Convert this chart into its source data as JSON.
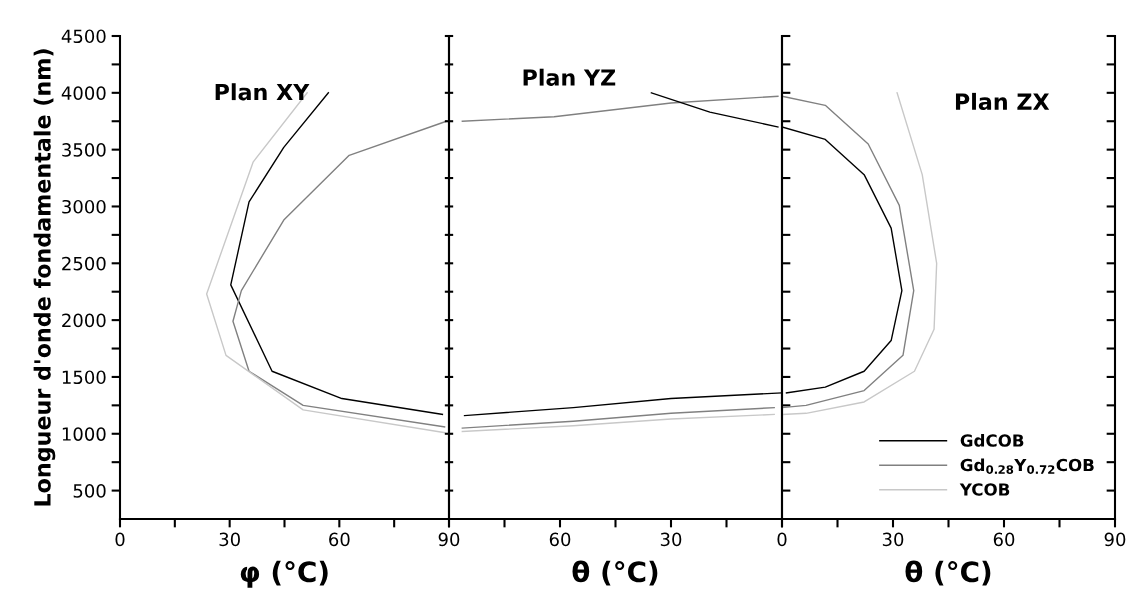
{
  "chart_data": [
    {
      "type": "line",
      "annotations": [
        "Plan XY"
      ],
      "xlabel": "φ (°C)",
      "ylabel": "Longueur d'onde fondamentale (nm)",
      "xlim": [
        0,
        90
      ],
      "xticks": [
        0,
        {
          "value": 15,
          "label": null
        },
        30,
        {
          "value": 45,
          "label": null
        },
        60,
        {
          "value": 75,
          "label": null
        },
        {
          "value": 90,
          "label": null
        }
      ],
      "ylim": [
        250,
        4500
      ],
      "yticks": [
        500,
        {
          "value": 750,
          "label": null
        },
        1000,
        {
          "value": 1250,
          "label": null
        },
        1500,
        {
          "value": 1750,
          "label": null
        },
        2000,
        {
          "value": 2250,
          "label": null
        },
        2500,
        {
          "value": 2750,
          "label": null
        },
        3000,
        {
          "value": 3250,
          "label": null
        },
        3500,
        {
          "value": 3750,
          "label": null
        },
        4000,
        {
          "value": 4250,
          "label": null
        },
        4500
      ],
      "grid": false,
      "legend": false,
      "series": [
        {
          "color": "#000000",
          "x": [
            57,
            44.8,
            35.3,
            30.3,
            41.6,
            60.7,
            88.2
          ],
          "values": [
            4000,
            3520,
            3040,
            2310,
            1550,
            1310,
            1170
          ]
        },
        {
          "color": "#808080",
          "x": [
            89.3,
            62.7,
            44.8,
            33.2,
            30.9,
            35.3,
            50.1,
            88.8
          ],
          "values": [
            3750,
            3450,
            2880,
            2260,
            1990,
            1550,
            1250,
            1060
          ]
        },
        {
          "color": "#c8c8c8",
          "x": [
            51.2,
            36.4,
            23.7,
            29,
            50.1,
            88.8
          ],
          "values": [
            4000,
            3390,
            2230,
            1690,
            1210,
            1010
          ]
        }
      ]
    },
    {
      "type": "line",
      "annotations": [
        "Plan YZ"
      ],
      "xlabel": "θ (°C)",
      "tick_labels": "x",
      "xlim": [
        90,
        0
      ],
      "xticks": [
        90,
        {
          "value": 75,
          "label": null
        },
        60,
        {
          "value": 45,
          "label": null
        },
        30,
        {
          "value": 15,
          "label": null
        },
        {
          "value": 0,
          "label": null
        }
      ],
      "ylim": [
        250,
        4500
      ],
      "yticks": [
        {
          "value": 500,
          "label": null
        },
        {
          "value": 750,
          "label": null
        },
        {
          "value": 1000,
          "label": null
        },
        {
          "value": 1250,
          "label": null
        },
        {
          "value": 1500,
          "label": null
        },
        {
          "value": 1750,
          "label": null
        },
        {
          "value": 2000,
          "label": null
        },
        {
          "value": 2250,
          "label": null
        },
        {
          "value": 2500,
          "label": null
        },
        {
          "value": 2750,
          "label": null
        },
        {
          "value": 3000,
          "label": null
        },
        {
          "value": 3250,
          "label": null
        },
        {
          "value": 3500,
          "label": null
        },
        {
          "value": 3750,
          "label": null
        },
        {
          "value": 4000,
          "label": null
        },
        {
          "value": 4250,
          "label": null
        },
        {
          "value": 4500,
          "label": null
        }
      ],
      "grid": false,
      "legend": false,
      "series": [
        {
          "color": "#808080",
          "x": [
            86.4,
            61.6,
            30,
            1.1
          ],
          "values": [
            3750,
            3790,
            3910,
            3970
          ]
        },
        {
          "color": "#000000",
          "x": [
            35.3,
            19.5,
            1.1
          ],
          "values": [
            4000,
            3830,
            3700
          ]
        },
        {
          "color": "#000000",
          "x": [
            85.8,
            56.4,
            30,
            0
          ],
          "values": [
            1160,
            1230,
            1310,
            1360
          ]
        },
        {
          "color": "#808080",
          "x": [
            86.4,
            56.4,
            30,
            2.1
          ],
          "values": [
            1050,
            1110,
            1180,
            1230
          ]
        },
        {
          "color": "#c8c8c8",
          "x": [
            86.4,
            56.4,
            30,
            2.1
          ],
          "values": [
            1020,
            1070,
            1130,
            1170
          ]
        }
      ]
    },
    {
      "type": "line",
      "annotations": [
        "Plan ZX"
      ],
      "xlabel": "θ (°C)",
      "tick_labels": "x",
      "xlim": [
        0,
        90
      ],
      "xticks": [
        0,
        {
          "value": 15,
          "label": null
        },
        30,
        {
          "value": 45,
          "label": null
        },
        60,
        {
          "value": 75,
          "label": null
        },
        90
      ],
      "ylim": [
        250,
        4500
      ],
      "yticks": [
        {
          "value": 500,
          "label": null
        },
        {
          "value": 750,
          "label": null
        },
        {
          "value": 1000,
          "label": null
        },
        {
          "value": 1250,
          "label": null
        },
        {
          "value": 1500,
          "label": null
        },
        {
          "value": 1750,
          "label": null
        },
        {
          "value": 2000,
          "label": null
        },
        {
          "value": 2250,
          "label": null
        },
        {
          "value": 2500,
          "label": null
        },
        {
          "value": 2750,
          "label": null
        },
        {
          "value": 3000,
          "label": null
        },
        {
          "value": 3250,
          "label": null
        },
        {
          "value": 3500,
          "label": null
        },
        {
          "value": 3750,
          "label": null
        },
        {
          "value": 4000,
          "label": null
        },
        {
          "value": 4250,
          "label": null
        },
        {
          "value": 4500,
          "label": null
        }
      ],
      "grid": false,
      "legend": "bottom right",
      "series": [
        {
          "name": "GdCOB",
          "color": "#000000",
          "x": [
            0,
            11.7,
            22.2,
            29.5,
            32.4,
            29.5,
            22.2,
            11.7,
            1.2
          ],
          "values": [
            3700,
            3590,
            3280,
            2810,
            2260,
            1820,
            1550,
            1410,
            1360
          ]
        },
        {
          "name": "Gd$_{0.28}$Y$_{0.72}$COB",
          "color": "#808080",
          "x": [
            0,
            11.7,
            23.3,
            31.7,
            35.6,
            32.7,
            22.2,
            6.5,
            0
          ],
          "values": [
            3970,
            3890,
            3550,
            3010,
            2260,
            1690,
            1380,
            1250,
            1230
          ]
        },
        {
          "name": "YCOB",
          "color": "#c8c8c8",
          "x": [
            31.1,
            37.9,
            41.8,
            41.1,
            35.8,
            22.2,
            6.5,
            0
          ],
          "values": [
            4000,
            3280,
            2500,
            1920,
            1550,
            1280,
            1180,
            1170
          ]
        }
      ]
    }
  ]
}
